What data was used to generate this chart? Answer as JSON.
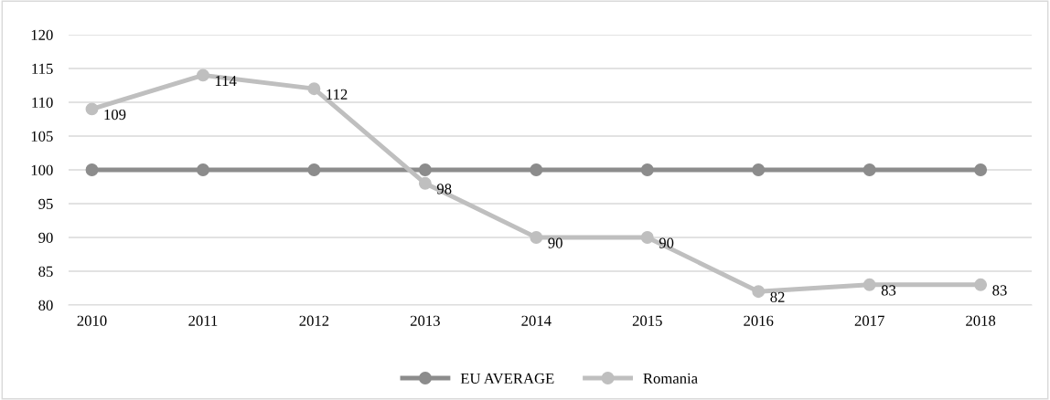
{
  "chart_data": {
    "type": "line",
    "categories": [
      "2010",
      "2011",
      "2012",
      "2013",
      "2014",
      "2015",
      "2016",
      "2017",
      "2018"
    ],
    "series": [
      {
        "name": "EU AVERAGE",
        "color": "#8c8c8c",
        "values": [
          100,
          100,
          100,
          100,
          100,
          100,
          100,
          100,
          100
        ]
      },
      {
        "name": "Romania",
        "color": "#bfbfbf",
        "values": [
          109,
          114,
          112,
          98,
          90,
          90,
          82,
          83,
          83
        ],
        "value_labels": [
          "109",
          "114",
          "112",
          "98",
          "90",
          "90",
          "82",
          "83",
          "83"
        ]
      }
    ],
    "ylim": [
      80,
      120
    ],
    "yticks": [
      80,
      85,
      90,
      95,
      100,
      105,
      110,
      115,
      120
    ],
    "grid": "y",
    "legend": "bottom",
    "marker": "circle",
    "line_style": "solid"
  }
}
